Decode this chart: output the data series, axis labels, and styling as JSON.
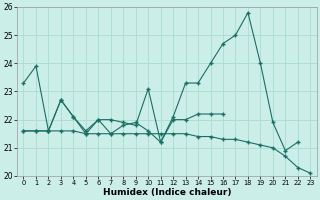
{
  "xlabel": "Humidex (Indice chaleur)",
  "background_color": "#cceee8",
  "line_color": "#1a6e64",
  "grid_color": "#aaddcc",
  "xlim": [
    -0.5,
    23.5
  ],
  "ylim": [
    20,
    26
  ],
  "yticks": [
    20,
    21,
    22,
    23,
    24,
    25,
    26
  ],
  "xticks": [
    0,
    1,
    2,
    3,
    4,
    5,
    6,
    7,
    8,
    9,
    10,
    11,
    12,
    13,
    14,
    15,
    16,
    17,
    18,
    19,
    20,
    21,
    22,
    23
  ],
  "line1_x": [
    0,
    1,
    2,
    3,
    4,
    5,
    6,
    7,
    8,
    9,
    10,
    11,
    12,
    13,
    14,
    15,
    16,
    17,
    18,
    19,
    20,
    21,
    22,
    23
  ],
  "line1_y": [
    23.3,
    23.9,
    21.6,
    22.7,
    22.1,
    21.6,
    22.0,
    22.0,
    21.9,
    21.8,
    23.1,
    21.2,
    22.1,
    23.3,
    23.3,
    24.0,
    24.7,
    25.0,
    25.8,
    24.0,
    21.9,
    20.9,
    21.2,
    null
  ],
  "line2_x": [
    0,
    1,
    2,
    3,
    4,
    5,
    6,
    7,
    8,
    9,
    10,
    11,
    12,
    13,
    14,
    15,
    16,
    17,
    18,
    19,
    20,
    21,
    22,
    23
  ],
  "line2_y": [
    21.6,
    21.6,
    21.6,
    22.7,
    22.1,
    21.5,
    22.0,
    21.5,
    21.8,
    21.9,
    21.6,
    21.2,
    22.0,
    22.0,
    22.2,
    22.2,
    22.2,
    null,
    null,
    null,
    null,
    null,
    null,
    null
  ],
  "line3_x": [
    0,
    1,
    2,
    3,
    4,
    5,
    6,
    7,
    8,
    9,
    10,
    11,
    12,
    13,
    14,
    15,
    16,
    17,
    18,
    19,
    20,
    21,
    22,
    23
  ],
  "line3_y": [
    21.6,
    21.6,
    21.6,
    21.6,
    21.6,
    21.5,
    21.5,
    21.5,
    21.5,
    21.5,
    21.5,
    21.5,
    21.5,
    21.5,
    21.4,
    21.4,
    21.3,
    21.3,
    21.2,
    21.1,
    21.0,
    20.7,
    20.3,
    20.1
  ]
}
